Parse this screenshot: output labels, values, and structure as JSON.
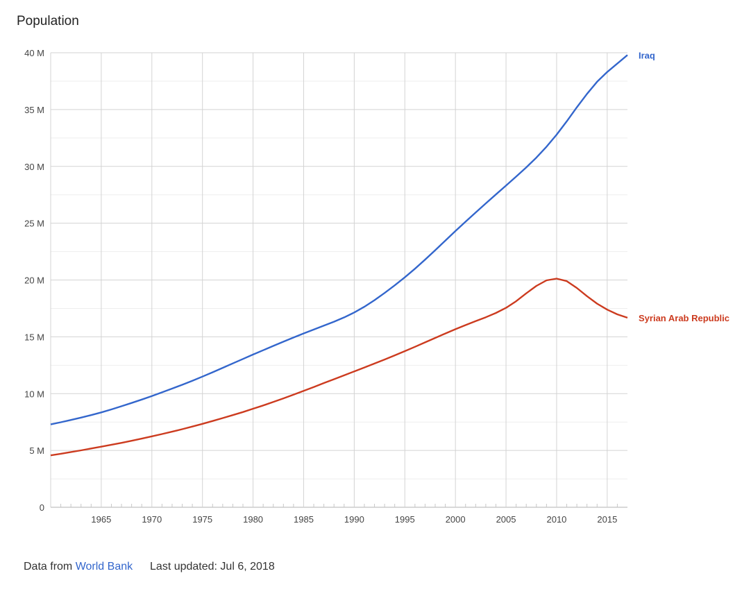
{
  "colors": {
    "iraq": "#3366cc",
    "syria": "#cc3b1f",
    "grid": "#d3d3d3",
    "minor_grid": "#eeeeee",
    "axis_text": "#444444"
  },
  "footer": {
    "prefix": "Data from",
    "source_link": "World Bank",
    "updated": "Last updated: Jul 6, 2018"
  },
  "chart_data": {
    "type": "line",
    "title": "Population",
    "xlabel": "",
    "ylabel": "",
    "xlim": [
      1960,
      2017
    ],
    "ylim": [
      0,
      40
    ],
    "y_unit": "M",
    "y_ticks": [
      0,
      5,
      10,
      15,
      20,
      25,
      30,
      35,
      40
    ],
    "y_tick_labels": [
      "0",
      "5 M",
      "10 M",
      "15 M",
      "20 M",
      "25 M",
      "30 M",
      "35 M",
      "40 M"
    ],
    "x_ticks": [
      1965,
      1970,
      1975,
      1980,
      1985,
      1990,
      1995,
      2000,
      2005,
      2010,
      2015
    ],
    "x_tick_labels": [
      "1965",
      "1970",
      "1975",
      "1980",
      "1985",
      "1990",
      "1995",
      "2000",
      "2005",
      "2010",
      "2015"
    ],
    "grid": true,
    "legend": "end-of-line labels",
    "x": [
      1960,
      1961,
      1962,
      1963,
      1964,
      1965,
      1966,
      1967,
      1968,
      1969,
      1970,
      1971,
      1972,
      1973,
      1974,
      1975,
      1976,
      1977,
      1978,
      1979,
      1980,
      1981,
      1982,
      1983,
      1984,
      1985,
      1986,
      1987,
      1988,
      1989,
      1990,
      1991,
      1992,
      1993,
      1994,
      1995,
      1996,
      1997,
      1998,
      1999,
      2000,
      2001,
      2002,
      2003,
      2004,
      2005,
      2006,
      2007,
      2008,
      2009,
      2010,
      2011,
      2012,
      2013,
      2014,
      2015,
      2016,
      2017
    ],
    "series": [
      {
        "name": "Iraq",
        "color": "#3366cc",
        "values": [
          7.29,
          7.48,
          7.68,
          7.89,
          8.11,
          8.35,
          8.61,
          8.89,
          9.18,
          9.48,
          9.79,
          10.11,
          10.44,
          10.78,
          11.13,
          11.5,
          11.88,
          12.27,
          12.66,
          13.05,
          13.44,
          13.82,
          14.2,
          14.57,
          14.94,
          15.3,
          15.64,
          15.98,
          16.33,
          16.71,
          17.14,
          17.64,
          18.22,
          18.86,
          19.53,
          20.24,
          20.99,
          21.79,
          22.62,
          23.47,
          24.31,
          25.13,
          25.94,
          26.74,
          27.53,
          28.31,
          29.1,
          29.91,
          30.77,
          31.73,
          32.79,
          33.96,
          35.2,
          36.38,
          37.45,
          38.3,
          39.05,
          39.8
        ]
      },
      {
        "name": "Syrian Arab Republic",
        "color": "#cc3b1f",
        "values": [
          4.57,
          4.71,
          4.86,
          5.01,
          5.17,
          5.33,
          5.5,
          5.67,
          5.85,
          6.04,
          6.24,
          6.44,
          6.65,
          6.87,
          7.1,
          7.34,
          7.59,
          7.85,
          8.11,
          8.38,
          8.67,
          8.96,
          9.27,
          9.58,
          9.91,
          10.24,
          10.58,
          10.93,
          11.27,
          11.61,
          11.96,
          12.3,
          12.65,
          13.0,
          13.37,
          13.74,
          14.12,
          14.51,
          14.9,
          15.29,
          15.67,
          16.03,
          16.38,
          16.72,
          17.1,
          17.55,
          18.13,
          18.83,
          19.48,
          19.97,
          20.12,
          19.9,
          19.3,
          18.58,
          17.92,
          17.39,
          16.98,
          16.68
        ]
      }
    ]
  }
}
